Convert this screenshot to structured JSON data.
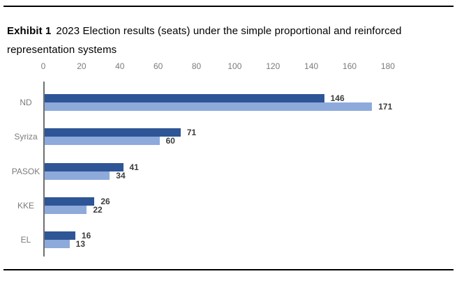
{
  "title": {
    "exhibit_label": "Exhibit 1",
    "text": "2023 Election results (seats) under the simple proportional and reinforced representation systems"
  },
  "chart_data": {
    "type": "bar",
    "orientation": "horizontal",
    "title": "2023 Election results (seats) under the simple proportional and reinforced representation systems",
    "xlabel": "",
    "ylabel": "",
    "xlim": [
      0,
      180
    ],
    "xticks": [
      0,
      20,
      40,
      60,
      80,
      100,
      120,
      140,
      160,
      180
    ],
    "grid": false,
    "legend": "none",
    "axis_position": "top",
    "categories": [
      "ND",
      "Syriza",
      "PASOK",
      "KKE",
      "EL"
    ],
    "series": [
      {
        "name": "dark-blue-series",
        "color": "#2E5596",
        "values": [
          146,
          71,
          41,
          26,
          16
        ]
      },
      {
        "name": "light-blue-series",
        "color": "#8EAADB",
        "values": [
          171,
          60,
          34,
          22,
          13
        ]
      }
    ],
    "value_labels_shown": true
  },
  "colors": {
    "dark_bar": "#2E5596",
    "light_bar": "#8EAADB",
    "axis_text": "#7b7b7b",
    "value_text": "#3d3d3d",
    "rule": "#000000"
  }
}
